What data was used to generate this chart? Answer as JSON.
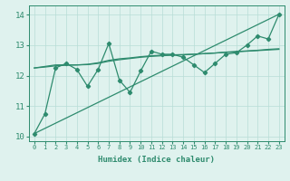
{
  "xlabel": "Humidex (Indice chaleur)",
  "x": [
    0,
    1,
    2,
    3,
    4,
    5,
    6,
    7,
    8,
    9,
    10,
    11,
    12,
    13,
    14,
    15,
    16,
    17,
    18,
    19,
    20,
    21,
    22,
    23
  ],
  "y_main": [
    10.1,
    10.75,
    12.25,
    12.4,
    12.2,
    11.65,
    12.2,
    13.05,
    11.85,
    11.45,
    12.15,
    12.8,
    12.7,
    12.7,
    12.6,
    12.35,
    12.1,
    12.4,
    12.7,
    12.75,
    13.0,
    13.3,
    13.2,
    14.0
  ],
  "y_linear": [
    10.1,
    10.27,
    10.44,
    10.61,
    10.78,
    10.95,
    11.12,
    11.29,
    11.46,
    11.63,
    11.8,
    11.97,
    12.14,
    12.31,
    12.48,
    12.65,
    12.82,
    12.99,
    13.16,
    13.33,
    13.5,
    13.67,
    13.84,
    14.01
  ],
  "y_smooth1": [
    12.25,
    12.3,
    12.35,
    12.35,
    12.35,
    12.37,
    12.42,
    12.5,
    12.55,
    12.58,
    12.62,
    12.65,
    12.67,
    12.68,
    12.69,
    12.7,
    12.72,
    12.74,
    12.76,
    12.78,
    12.8,
    12.82,
    12.84,
    12.86
  ],
  "y_smooth2": [
    12.25,
    12.28,
    12.32,
    12.34,
    12.35,
    12.36,
    12.4,
    12.47,
    12.52,
    12.56,
    12.6,
    12.63,
    12.65,
    12.67,
    12.68,
    12.7,
    12.72,
    12.74,
    12.77,
    12.79,
    12.81,
    12.83,
    12.86,
    12.88
  ],
  "color": "#2e8b6e",
  "bg_color": "#dff2ee",
  "grid_color": "#b8ddd6",
  "ylim": [
    9.85,
    14.3
  ],
  "xlim": [
    -0.5,
    23.5
  ],
  "yticks": [
    10,
    11,
    12,
    13,
    14
  ],
  "xticks": [
    0,
    1,
    2,
    3,
    4,
    5,
    6,
    7,
    8,
    9,
    10,
    11,
    12,
    13,
    14,
    15,
    16,
    17,
    18,
    19,
    20,
    21,
    22,
    23
  ]
}
